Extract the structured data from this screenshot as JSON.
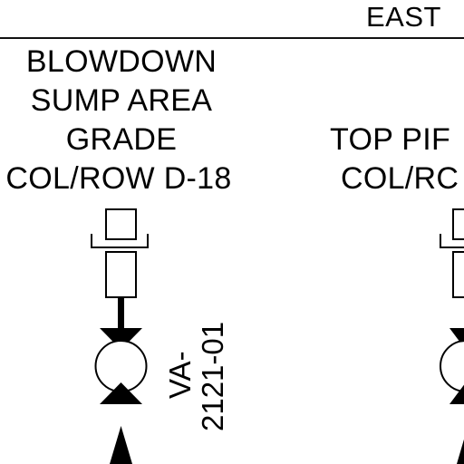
{
  "header": {
    "direction_label": "EAST"
  },
  "locations": [
    {
      "lines": [
        "BLOWDOWN",
        "SUMP AREA",
        "GRADE",
        "COL/ROW D-18"
      ]
    },
    {
      "lines": [
        "TOP PIF",
        "COL/RC"
      ]
    }
  ],
  "valve": {
    "tag_line1": "VA-",
    "tag_line2": "2121-01"
  },
  "colors": {
    "ink": "#000000",
    "paper": "#ffffff"
  }
}
